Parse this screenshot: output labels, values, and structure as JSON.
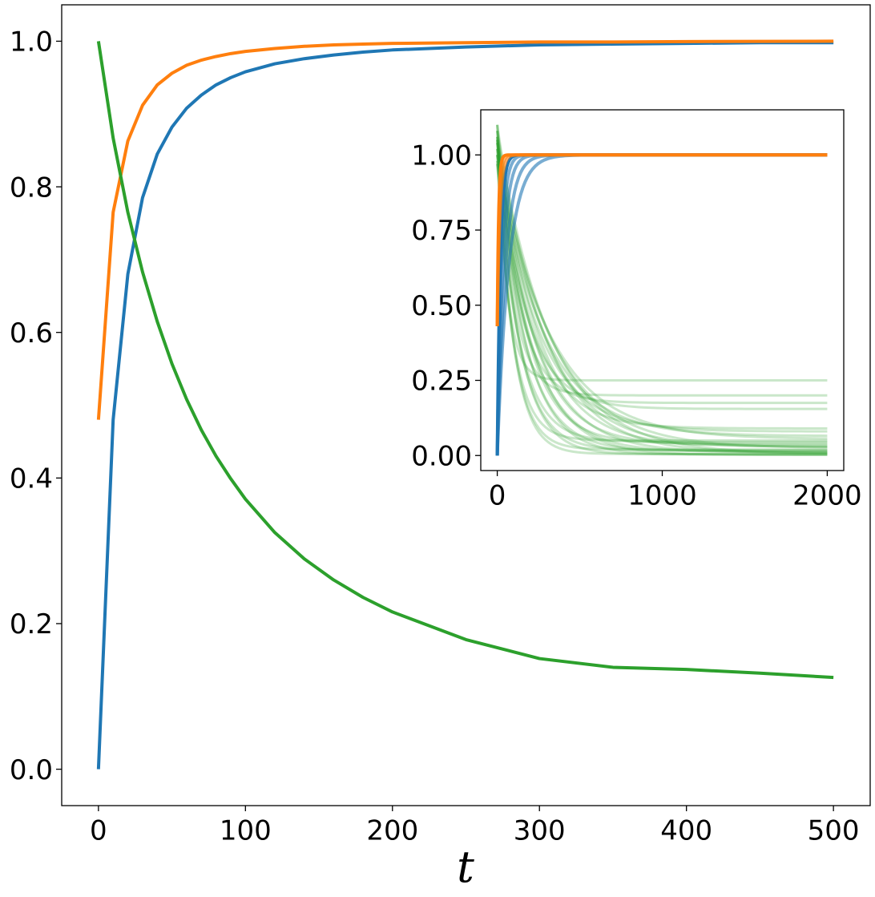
{
  "chart_data": [
    {
      "type": "line",
      "role": "main",
      "title": "",
      "xlabel": "t",
      "ylabel": "",
      "xlim": [
        -25,
        525
      ],
      "ylim": [
        -0.05,
        1.05
      ],
      "xticks": [
        0,
        100,
        200,
        300,
        400,
        500
      ],
      "yticks": [
        0.0,
        0.2,
        0.4,
        0.6,
        0.8,
        1.0
      ],
      "xtick_labels": [
        "0",
        "100",
        "200",
        "300",
        "400",
        "500"
      ],
      "ytick_labels": [
        "0.0",
        "0.2",
        "0.4",
        "0.6",
        "0.8",
        "1.0"
      ],
      "grid": false,
      "legend": "none",
      "series": [
        {
          "color": "#1f77b4",
          "x": [
            0,
            10,
            20,
            30,
            40,
            50,
            60,
            70,
            80,
            90,
            100,
            120,
            140,
            160,
            180,
            200,
            250,
            300,
            350,
            400,
            450,
            500
          ],
          "y": [
            0.0,
            0.48,
            0.68,
            0.785,
            0.845,
            0.882,
            0.908,
            0.926,
            0.94,
            0.95,
            0.958,
            0.969,
            0.976,
            0.981,
            0.985,
            0.988,
            0.992,
            0.995,
            0.996,
            0.997,
            0.998,
            0.998
          ]
        },
        {
          "color": "#ff7f0e",
          "x": [
            0,
            10,
            20,
            30,
            40,
            50,
            60,
            70,
            80,
            90,
            100,
            120,
            140,
            160,
            180,
            200,
            250,
            300,
            350,
            400,
            450,
            500
          ],
          "y": [
            0.48,
            0.765,
            0.863,
            0.912,
            0.94,
            0.956,
            0.967,
            0.974,
            0.979,
            0.983,
            0.986,
            0.99,
            0.993,
            0.995,
            0.996,
            0.997,
            0.998,
            0.999,
            0.999,
            0.9995,
            0.9998,
            1.0
          ]
        },
        {
          "color": "#2ca02c",
          "x": [
            0,
            10,
            20,
            30,
            40,
            50,
            60,
            70,
            80,
            90,
            100,
            120,
            140,
            160,
            180,
            200,
            250,
            300,
            350,
            400,
            450,
            500
          ],
          "y": [
            1.0,
            0.867,
            0.765,
            0.683,
            0.615,
            0.557,
            0.508,
            0.466,
            0.43,
            0.399,
            0.371,
            0.325,
            0.289,
            0.26,
            0.236,
            0.216,
            0.178,
            0.152,
            0.14,
            0.137,
            0.132,
            0.126
          ]
        }
      ]
    },
    {
      "type": "line",
      "role": "inset",
      "title": "",
      "xlabel": "",
      "ylabel": "",
      "xlim": [
        -100,
        2100
      ],
      "ylim": [
        -0.05,
        1.15
      ],
      "xticks": [
        0,
        1000,
        2000
      ],
      "yticks": [
        0.0,
        0.25,
        0.5,
        0.75,
        1.0
      ],
      "xtick_labels": [
        "0",
        "1000",
        "2000"
      ],
      "ytick_labels": [
        "0.00",
        "0.25",
        "0.50",
        "0.75",
        "1.00"
      ],
      "grid": false,
      "legend": "none",
      "series": [
        {
          "color": "#2ca02c",
          "alpha": 0.25,
          "note_runs": "many faint runs",
          "start": [
            1.1,
            1.08,
            1.06,
            1.05,
            1.04,
            1.02,
            1.0,
            1.0,
            0.98,
            0.97
          ],
          "end": [
            0.25,
            0.2,
            0.175,
            0.155,
            0.09,
            0.08,
            0.065,
            0.055,
            0.05,
            0.045,
            0.04,
            0.035,
            0.03,
            0.028,
            0.025,
            0.02,
            0.018,
            0.015,
            0.012,
            0.01,
            0.008,
            0.006,
            0.005,
            0.004,
            0.003,
            0.002
          ]
        },
        {
          "color": "#1f77b4",
          "start": 0.0,
          "end": 1.0
        },
        {
          "color": "#ff7f0e",
          "start": 0.43,
          "end": 1.0
        }
      ]
    }
  ]
}
